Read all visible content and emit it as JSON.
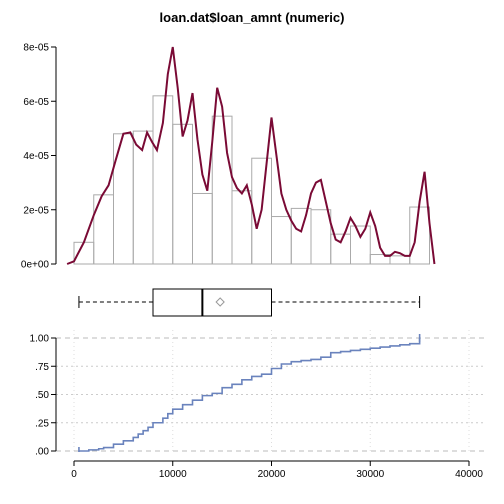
{
  "title": "loan.dat$loan_amnt (numeric)",
  "chart_data": [
    {
      "type": "bar",
      "panel": "histogram-density",
      "xlim": [
        -700,
        36500
      ],
      "ylim": [
        0,
        8e-05
      ],
      "y_ticks": [
        0,
        2e-05,
        4e-05,
        6e-05,
        8e-05
      ],
      "y_tick_labels": [
        "0e+00",
        "2e-05",
        "4e-05",
        "6e-05",
        "8e-05"
      ],
      "bins": [
        {
          "from": 0,
          "to": 2000,
          "value": 8e-06
        },
        {
          "from": 2000,
          "to": 4000,
          "value": 2.55e-05
        },
        {
          "from": 4000,
          "to": 6000,
          "value": 4.8e-05
        },
        {
          "from": 6000,
          "to": 8000,
          "value": 4.9e-05
        },
        {
          "from": 8000,
          "to": 10000,
          "value": 6.2e-05
        },
        {
          "from": 10000,
          "to": 12000,
          "value": 5.15e-05
        },
        {
          "from": 12000,
          "to": 14000,
          "value": 2.6e-05
        },
        {
          "from": 14000,
          "to": 16000,
          "value": 5.45e-05
        },
        {
          "from": 16000,
          "to": 18000,
          "value": 2.7e-05
        },
        {
          "from": 18000,
          "to": 20000,
          "value": 3.9e-05
        },
        {
          "from": 20000,
          "to": 22000,
          "value": 1.75e-05
        },
        {
          "from": 22000,
          "to": 24000,
          "value": 2.05e-05
        },
        {
          "from": 24000,
          "to": 26000,
          "value": 2e-05
        },
        {
          "from": 26000,
          "to": 28000,
          "value": 1.1e-05
        },
        {
          "from": 28000,
          "to": 30000,
          "value": 1.4e-05
        },
        {
          "from": 30000,
          "to": 32000,
          "value": 3.5e-06
        },
        {
          "from": 32000,
          "to": 34000,
          "value": 3e-06
        },
        {
          "from": 34000,
          "to": 36000,
          "value": 2.1e-05
        }
      ],
      "density_x": [
        -700,
        0,
        1000,
        2000,
        2800,
        3500,
        4200,
        5000,
        5700,
        6300,
        6900,
        7400,
        7900,
        8400,
        9000,
        9500,
        10000,
        10500,
        11000,
        11500,
        12000,
        12500,
        13000,
        13500,
        14000,
        14500,
        15000,
        15500,
        16000,
        16500,
        17000,
        17500,
        18000,
        18500,
        19000,
        19500,
        20000,
        20500,
        21000,
        21500,
        22000,
        22500,
        23000,
        23500,
        24000,
        24500,
        25000,
        25500,
        26000,
        26500,
        27000,
        27500,
        28000,
        28500,
        29000,
        29500,
        30000,
        30500,
        31000,
        31500,
        32000,
        32500,
        33000,
        33500,
        34000,
        34500,
        35000,
        35500,
        36000,
        36500
      ],
      "density_y": [
        0,
        1e-06,
        8e-06,
        1.8e-05,
        2.5e-05,
        2.9e-05,
        3.8e-05,
        4.8e-05,
        4.85e-05,
        4.4e-05,
        4.2e-05,
        4.85e-05,
        4.5e-05,
        4.2e-05,
        5.2e-05,
        7e-05,
        8e-05,
        6.5e-05,
        4.7e-05,
        5.3e-05,
        6.3e-05,
        4.6e-05,
        3.3e-05,
        2.7e-05,
        4.5e-05,
        6.5e-05,
        5.8e-05,
        4.1e-05,
        3.2e-05,
        2.8e-05,
        2.6e-05,
        2.9e-05,
        2.2e-05,
        1.3e-05,
        2e-05,
        3.7e-05,
        5.4e-05,
        4e-05,
        2.6e-05,
        2e-05,
        1.6e-05,
        1.3e-05,
        1.2e-05,
        1.8e-05,
        2.6e-05,
        3e-05,
        3.1e-05,
        2.3e-05,
        1.5e-05,
        9e-06,
        8e-06,
        1.2e-05,
        1.7e-05,
        1.4e-05,
        1e-05,
        1.3e-05,
        1.9e-05,
        1.4e-05,
        6e-06,
        3e-06,
        3e-06,
        4.5e-06,
        4e-06,
        3e-06,
        3e-06,
        8e-06,
        2.3e-05,
        3.4e-05,
        1.5e-05,
        0
      ]
    },
    {
      "type": "box",
      "panel": "boxplot",
      "min": 500,
      "q1": 8000,
      "median": 13000,
      "q3": 20000,
      "max": 35000,
      "mean": 14800
    },
    {
      "type": "line",
      "panel": "ecdf",
      "xlim": [
        -700,
        40000
      ],
      "ylim": [
        0,
        1
      ],
      "x_ticks": [
        0,
        10000,
        20000,
        30000,
        40000
      ],
      "x_tick_labels": [
        "0",
        "10000",
        "20000",
        "30000",
        "40000"
      ],
      "y_ticks": [
        0,
        0.25,
        0.5,
        0.75,
        1
      ],
      "y_tick_labels": [
        ".00",
        ".25",
        ".50",
        ".75",
        "1.00"
      ],
      "x": [
        500,
        1500,
        2500,
        3000,
        4000,
        5000,
        6000,
        6500,
        7000,
        7500,
        8000,
        9000,
        9500,
        10000,
        11000,
        12000,
        13000,
        14000,
        15000,
        16000,
        17000,
        18000,
        19000,
        20000,
        21000,
        22000,
        23000,
        24000,
        25000,
        26000,
        27000,
        28000,
        29000,
        30000,
        31000,
        32000,
        33000,
        34000,
        35000
      ],
      "y": [
        0.0,
        0.01,
        0.02,
        0.03,
        0.06,
        0.09,
        0.12,
        0.15,
        0.18,
        0.21,
        0.25,
        0.29,
        0.33,
        0.37,
        0.41,
        0.45,
        0.49,
        0.51,
        0.56,
        0.59,
        0.63,
        0.66,
        0.68,
        0.73,
        0.77,
        0.79,
        0.8,
        0.81,
        0.83,
        0.87,
        0.88,
        0.89,
        0.9,
        0.91,
        0.92,
        0.93,
        0.94,
        0.95,
        0.96
      ]
    }
  ]
}
